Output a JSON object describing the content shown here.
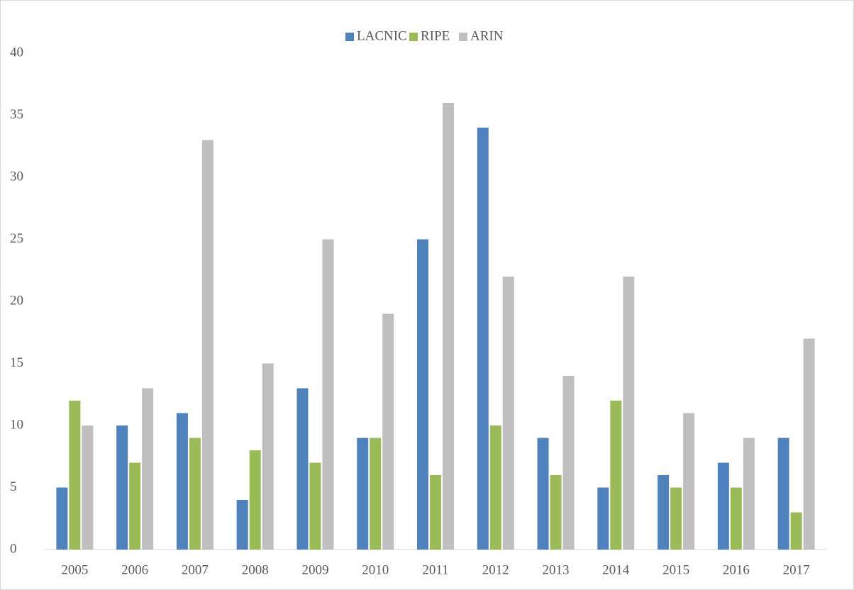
{
  "chart_data": {
    "type": "bar",
    "categories": [
      "2005",
      "2006",
      "2007",
      "2008",
      "2009",
      "2010",
      "2011",
      "2012",
      "2013",
      "2014",
      "2015",
      "2016",
      "2017"
    ],
    "series": [
      {
        "name": "LACNIC",
        "color": "#4f81bd",
        "values": [
          5,
          10,
          11,
          4,
          13,
          9,
          25,
          34,
          9,
          5,
          6,
          7,
          9
        ]
      },
      {
        "name": "RIPE",
        "color": "#9bbb59",
        "values": [
          12,
          7,
          9,
          8,
          7,
          9,
          6,
          10,
          6,
          12,
          5,
          5,
          3
        ]
      },
      {
        "name": "ARIN",
        "color": "#bfbfbf",
        "values": [
          10,
          13,
          33,
          15,
          25,
          19,
          36,
          22,
          14,
          22,
          11,
          9,
          17
        ]
      }
    ],
    "ylim": [
      0,
      40
    ],
    "yticks": [
      0,
      5,
      10,
      15,
      20,
      25,
      30,
      35,
      40
    ],
    "grid": false,
    "legend": "top"
  }
}
